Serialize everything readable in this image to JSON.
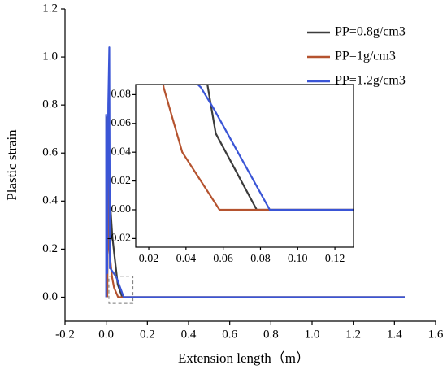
{
  "chart_data": {
    "type": "line",
    "xlabel": "Extension length（m）",
    "ylabel": "Plastic strain",
    "xlim": [
      -0.2,
      1.6
    ],
    "ylim": [
      -0.1,
      1.2
    ],
    "xticks": [
      -0.2,
      {
        "value": 0,
        "label": "0.0"
      },
      0.2,
      0.4,
      0.6,
      0.8,
      {
        "value": 1,
        "label": "1.0"
      },
      1.2,
      1.4,
      1.6
    ],
    "yticks": [
      {
        "value": 0,
        "label": "0.0"
      },
      0.2,
      0.4,
      0.6,
      0.8,
      {
        "value": 1,
        "label": "1.0"
      },
      1.2
    ],
    "legend": "upper right",
    "series": [
      {
        "name": "PP=0.8g/cm3",
        "color": "#3c3c3c",
        "x": [
          0.005,
          0.008,
          0.01,
          0.012,
          0.015,
          0.02,
          0.03,
          0.056,
          0.078,
          1.45
        ],
        "values": [
          0,
          0.75,
          0.3,
          0.8,
          0.35,
          0.38,
          0.25,
          0.053,
          0,
          0
        ]
      },
      {
        "name": "PP=1g/cm3",
        "color": "#b5532f",
        "x": [
          0.005,
          0.01,
          0.015,
          0.028,
          0.038,
          0.058,
          1.45
        ],
        "values": [
          0,
          0.6,
          0.2,
          0.085,
          0.04,
          0,
          0
        ]
      },
      {
        "name": "PP=1.2g/cm3",
        "color": "#3a55d6",
        "x": [
          0,
          0,
          0.005,
          0.01,
          0.015,
          0.018,
          0.02,
          0.048,
          0.055,
          0.085,
          1.45
        ],
        "values": [
          0,
          0.76,
          0.1,
          0.8,
          1.04,
          0.12,
          0.12,
          0.085,
          0.07,
          0,
          0
        ]
      }
    ],
    "inset": {
      "xlim": [
        0.013,
        0.13
      ],
      "ylim": [
        -0.026,
        0.087
      ],
      "xticks": [
        0.02,
        0.04,
        0.06,
        0.08,
        {
          "value": 0.1,
          "label": "0.10"
        },
        0.12
      ],
      "yticks": [
        -0.02,
        {
          "value": 0,
          "label": "0.00"
        },
        0.02,
        0.04,
        0.06,
        0.08
      ]
    }
  }
}
